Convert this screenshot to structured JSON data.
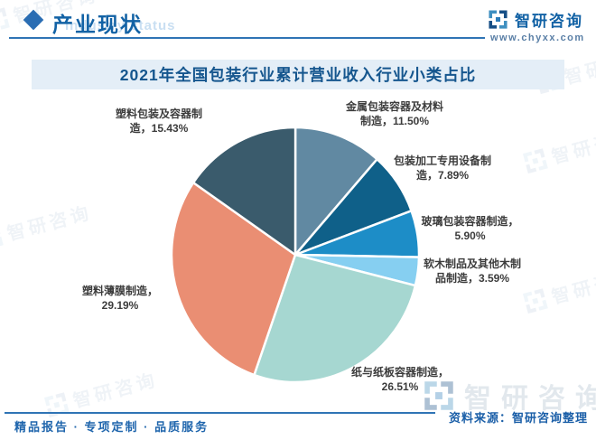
{
  "header": {
    "title": "产业现状",
    "watermark_en": "Industry status",
    "brand": "智研咨询",
    "website": "www.chyxx.com"
  },
  "chart_data": {
    "type": "pie",
    "title": "2021年全国包装行业累计营业收入行业小类占比",
    "unit": "%",
    "direction": "clockwise",
    "start_angle_deg": -90,
    "legend": "none",
    "categories": [
      "金属包装容器及材料制造",
      "包装加工专用设备制造",
      "玻璃包装容器制造",
      "软木制品及其他木制品制造",
      "纸与纸板容器制造",
      "塑料薄膜制造",
      "塑料包装及容器制造"
    ],
    "values": [
      11.5,
      7.89,
      5.9,
      3.59,
      26.51,
      29.19,
      15.43
    ],
    "colors": [
      "#6189a2",
      "#0f6089",
      "#1d8dc7",
      "#86cff1",
      "#a6d7d1",
      "#ea8e73",
      "#3a5b6c"
    ],
    "labels": [
      {
        "text": "金属包装容器及材料\n制造，11.50%"
      },
      {
        "text": "包装加工专用设备制\n造，7.89%"
      },
      {
        "text": "玻璃包装容器制造，\n5.90%"
      },
      {
        "text": "软木制品及其他木制\n品制造，3.59%"
      },
      {
        "text": "纸与纸板容器制造，\n26.51%"
      },
      {
        "text": "塑料薄膜制造，\n29.19%"
      },
      {
        "text": "塑料包装及容器制\n造，15.43%"
      }
    ]
  },
  "footer": {
    "tagline": "精品报告 · 专项定制 · 品质服务",
    "source": "资料来源：智研咨询整理",
    "watermark_brand": "智研咨询"
  }
}
